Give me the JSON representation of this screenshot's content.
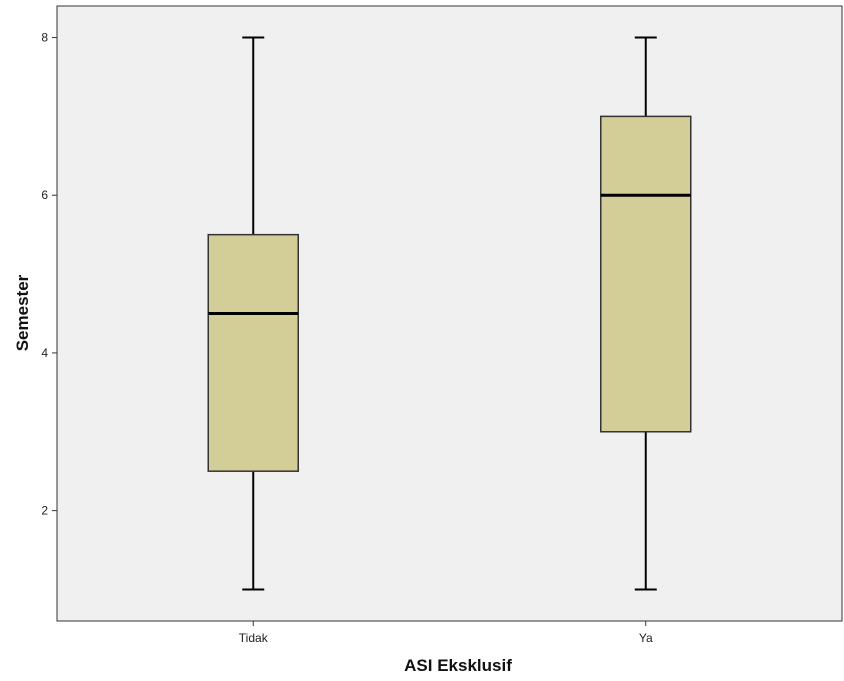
{
  "chart_data": {
    "type": "boxplot",
    "title": "",
    "xlabel": "ASI Eksklusif",
    "ylabel": "Semester",
    "ylim": [
      0.6,
      8.4
    ],
    "yticks": [
      2,
      4,
      6,
      8
    ],
    "grid": false,
    "legend": "none",
    "categories": [
      "Tidak",
      "Ya"
    ],
    "boxes": [
      {
        "category": "Tidak",
        "min": 1,
        "q1": 2.5,
        "median": 4.5,
        "q3": 5.5,
        "max": 8
      },
      {
        "category": "Ya",
        "min": 1,
        "q1": 3,
        "median": 6,
        "q3": 7,
        "max": 8
      }
    ],
    "colors": {
      "plot_background": "#f0f0f0",
      "box_fill": "#d3ce97",
      "line": "#000000"
    }
  }
}
